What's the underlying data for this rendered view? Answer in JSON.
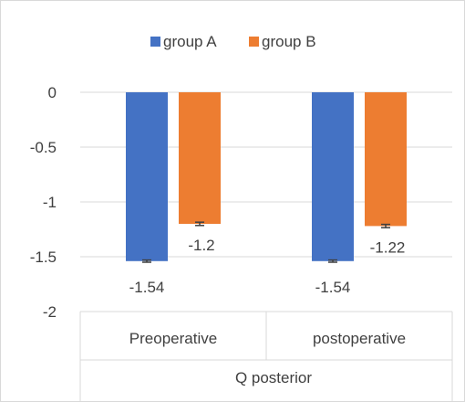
{
  "chart_data": {
    "type": "bar",
    "title": "",
    "xlabel": "Q posterior",
    "ylabel": "",
    "categories": [
      "Preoperative",
      "postoperative"
    ],
    "series": [
      {
        "name": "group A",
        "color": "#4472C4",
        "values": [
          -1.54,
          -1.54
        ],
        "labels": [
          "-1.54",
          "-1.54"
        ],
        "error": [
          0.01,
          0.01
        ]
      },
      {
        "name": "group B",
        "color": "#ED7D31",
        "values": [
          -1.2,
          -1.22
        ],
        "labels": [
          "-1.2",
          "-1.22"
        ],
        "error": [
          0.015,
          0.015
        ]
      }
    ],
    "ylim": [
      -2,
      0
    ],
    "yticks": [
      {
        "value": 0,
        "label": "0"
      },
      {
        "value": -0.5,
        "label": "-0.5"
      },
      {
        "value": -1,
        "label": "-1"
      },
      {
        "value": -1.5,
        "label": "-1.5"
      },
      {
        "value": -2,
        "label": "-2"
      }
    ],
    "grid": true,
    "legend_position": "top"
  }
}
